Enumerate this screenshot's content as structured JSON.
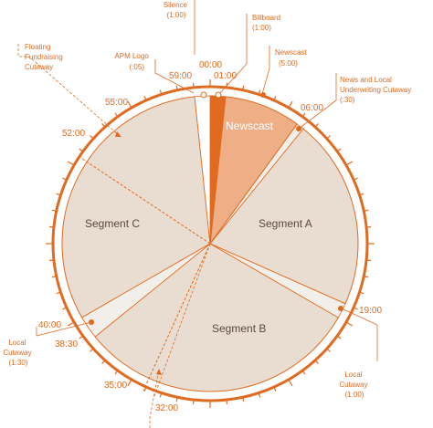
{
  "colors": {
    "accent": "#e06a1f",
    "segment_fill": "#e8ddd0",
    "newscast_fill": "#eeaf86",
    "cutaway_fill": "#f2efea",
    "segment_text": "#5a4a3a",
    "background": "#ffffff"
  },
  "segments": {
    "a": "Segment A",
    "b": "Segment B",
    "c": "Segment C",
    "newscast": "Newscast"
  },
  "times": {
    "t0000": "00:00",
    "t0100": "01:00",
    "t0600": "06:00",
    "t1900": "19:00",
    "t3200": "32:00",
    "t3500": "35:00",
    "t3830": "38:30",
    "t4000": "40:00",
    "t5200": "52:00",
    "t5500": "55:00",
    "t5900": "59:00"
  },
  "callouts": {
    "silence": [
      "Silence",
      "(1:00)"
    ],
    "billboard": [
      "Billboard",
      "(1:00)"
    ],
    "newscast": [
      "Newscast",
      "(5:00)"
    ],
    "news_local": [
      "News and Local",
      "Underwriting Cutaway",
      "(:30)"
    ],
    "apm_logo": [
      "APM Logo",
      "(:05)"
    ],
    "floating": [
      "Floating",
      "Fundraising",
      "Cutaway"
    ],
    "local_cutaway_left": [
      "Local",
      "Cutaway",
      "(1:30)"
    ],
    "local_cutaway_right": [
      "Local",
      "Cutaway",
      "(1:00)"
    ]
  }
}
